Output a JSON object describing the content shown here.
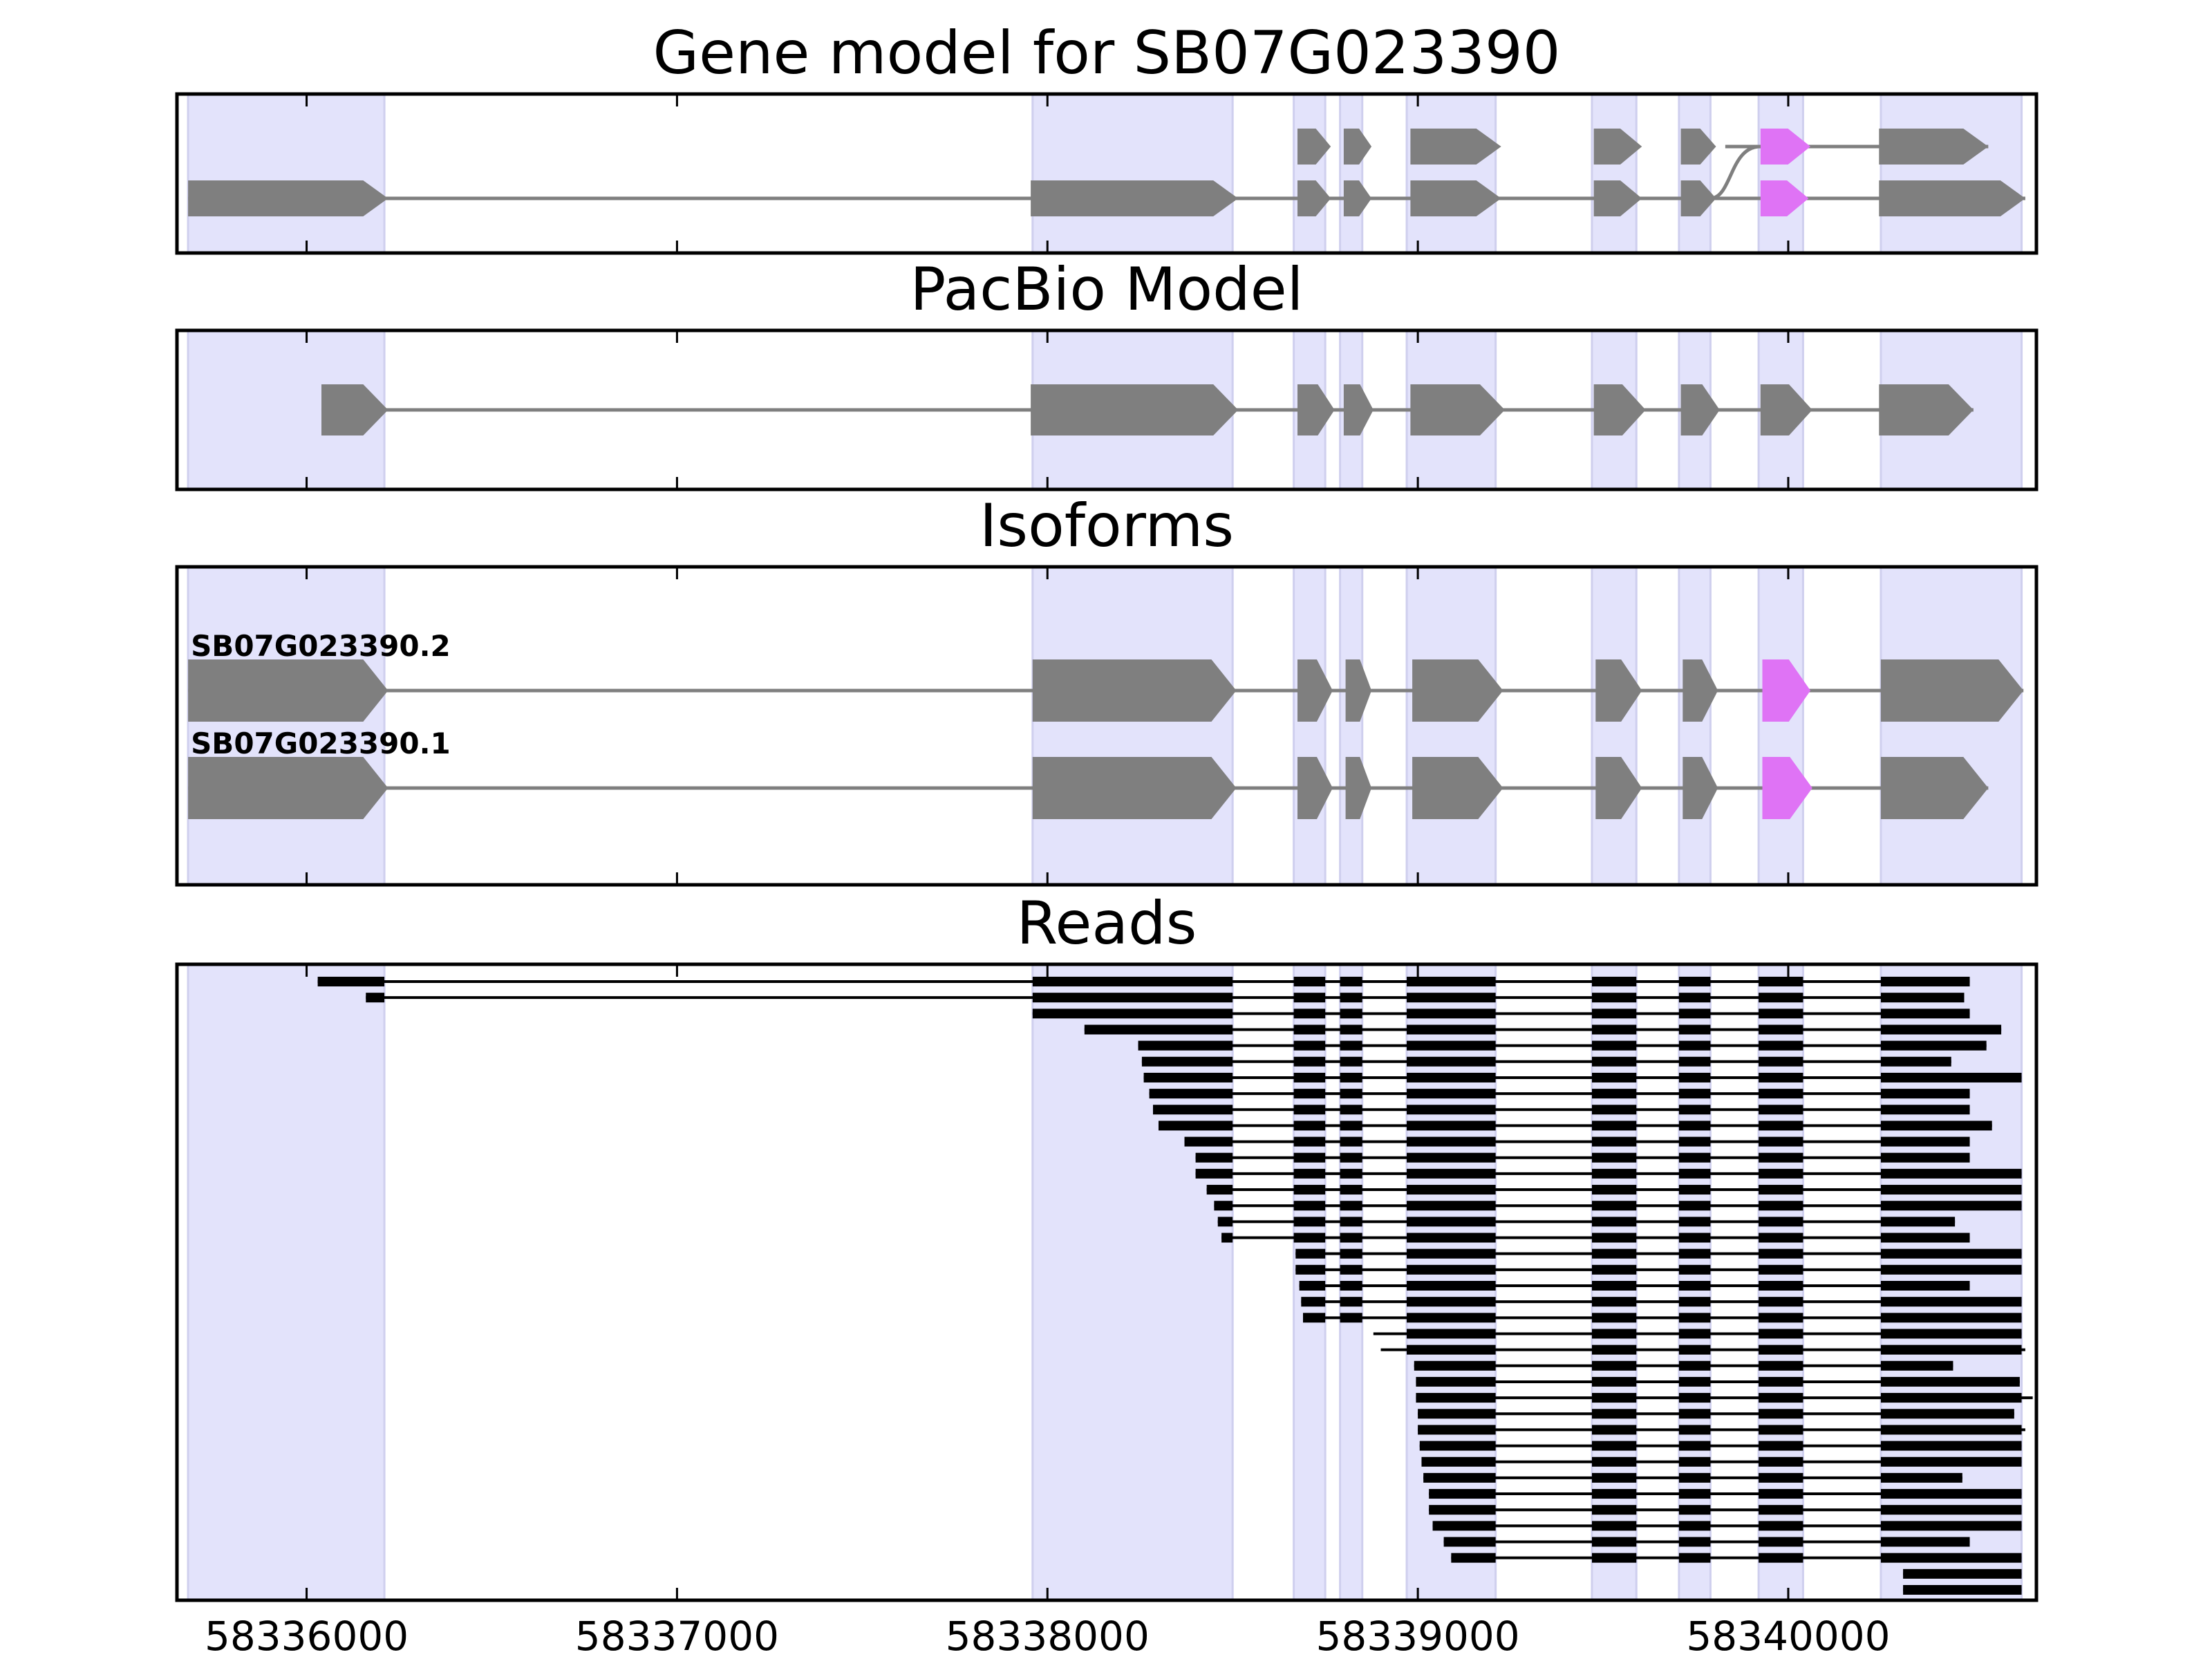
{
  "chart_data": {
    "type": "gene-structure",
    "x_range": [
      58335650,
      58340670
    ],
    "x_ticks": [
      58336000,
      58337000,
      58338000,
      58339000,
      58340000
    ],
    "x_tick_labels": [
      "58336000",
      "58337000",
      "58338000",
      "58339000",
      "58340000"
    ],
    "colors": {
      "exon_bg": "#e3e3fb",
      "exon_bg_edge": "#cfcfee",
      "feature": "#7f7f7f",
      "highlight": "#df73f5",
      "read": "#000000",
      "axis": "#000000"
    },
    "exon_regions": [
      [
        58335680,
        58336210
      ],
      [
        58337960,
        58338500
      ],
      [
        58338665,
        58338750
      ],
      [
        58338790,
        58338850
      ],
      [
        58338970,
        58339210
      ],
      [
        58339470,
        58339590
      ],
      [
        58339705,
        58339790
      ],
      [
        58339920,
        58340040
      ],
      [
        58340250,
        58340630
      ]
    ],
    "panels": [
      {
        "id": "gene-model",
        "title": "Gene model for SB07G023390",
        "tracks": [
          {
            "exons": [
              [
                58338675,
                58338765
              ],
              [
                58338800,
                58338875
              ],
              [
                58338980,
                58339225
              ],
              [
                58339475,
                58339605
              ],
              [
                58339710,
                58339805
              ],
              [
                58339925,
                58340060
              ],
              [
                58340245,
                58340540
              ]
            ],
            "highlight_exon": 5,
            "splay_from": 58339830
          },
          {
            "exons": [
              [
                58335680,
                58336220
              ],
              [
                58337955,
                58338515
              ],
              [
                58338675,
                58338765
              ],
              [
                58338800,
                58338875
              ],
              [
                58338980,
                58339225
              ],
              [
                58339475,
                58339605
              ],
              [
                58339710,
                58339805
              ],
              [
                58339925,
                58340055
              ],
              [
                58340245,
                58340640
              ]
            ],
            "highlight_exon": 7
          }
        ]
      },
      {
        "id": "pacbio-model",
        "title": "PacBio Model",
        "tracks": [
          {
            "exons": [
              [
                58336040,
                58336220
              ],
              [
                58337955,
                58338515
              ],
              [
                58338675,
                58338775
              ],
              [
                58338800,
                58338880
              ],
              [
                58338980,
                58339235
              ],
              [
                58339475,
                58339615
              ],
              [
                58339710,
                58339815
              ],
              [
                58339925,
                58340065
              ],
              [
                58340245,
                58340500
              ]
            ]
          }
        ]
      },
      {
        "id": "isoforms",
        "title": "Isoforms",
        "tracks": [
          {
            "label": "SB07G023390.2",
            "exons": [
              [
                58335680,
                58336220
              ],
              [
                58337960,
                58338510
              ],
              [
                58338675,
                58338770
              ],
              [
                58338805,
                58338875
              ],
              [
                58338985,
                58339230
              ],
              [
                58339480,
                58339605
              ],
              [
                58339715,
                58339810
              ],
              [
                58339930,
                58340060
              ],
              [
                58340250,
                58340635
              ]
            ],
            "highlight_exon": 7
          },
          {
            "label": "SB07G023390.1",
            "exons": [
              [
                58335680,
                58336220
              ],
              [
                58337960,
                58338510
              ],
              [
                58338675,
                58338770
              ],
              [
                58338805,
                58338875
              ],
              [
                58338985,
                58339230
              ],
              [
                58339480,
                58339605
              ],
              [
                58339715,
                58339810
              ],
              [
                58339930,
                58340065
              ],
              [
                58340250,
                58340540
              ]
            ],
            "highlight_exon": 7
          }
        ]
      },
      {
        "id": "reads",
        "title": "Reads",
        "read_starts": [
          58336030,
          58336160,
          58337960,
          58338100,
          58338245,
          58338255,
          58338260,
          58338275,
          58338285,
          58338300,
          58338370,
          58338400,
          58338400,
          58338430,
          58338450,
          58338460,
          58338470,
          58338670,
          58338670,
          58338680,
          58338685,
          58338690,
          58338880,
          58338900,
          58338990,
          58338995,
          58338995,
          58339000,
          58339000,
          58339005,
          58339010,
          58339015,
          58339030,
          58339030,
          58339040,
          58339070,
          58339090,
          58340310,
          58340310
        ],
        "read_ends": [
          58340490,
          58340475,
          58340490,
          58340575,
          58340535,
          58340440,
          58340630,
          58340490,
          58340490,
          58340550,
          58340490,
          58340490,
          58340630,
          58340630,
          58340630,
          58340450,
          58340490,
          58340630,
          58340630,
          58340490,
          58340630,
          58340630,
          58340630,
          58340640,
          58340445,
          58340625,
          58340660,
          58340610,
          58340640,
          58340630,
          58340630,
          58340470,
          58340630,
          58340630,
          58340630,
          58340490,
          58340630,
          58340630,
          58340630
        ]
      }
    ]
  }
}
